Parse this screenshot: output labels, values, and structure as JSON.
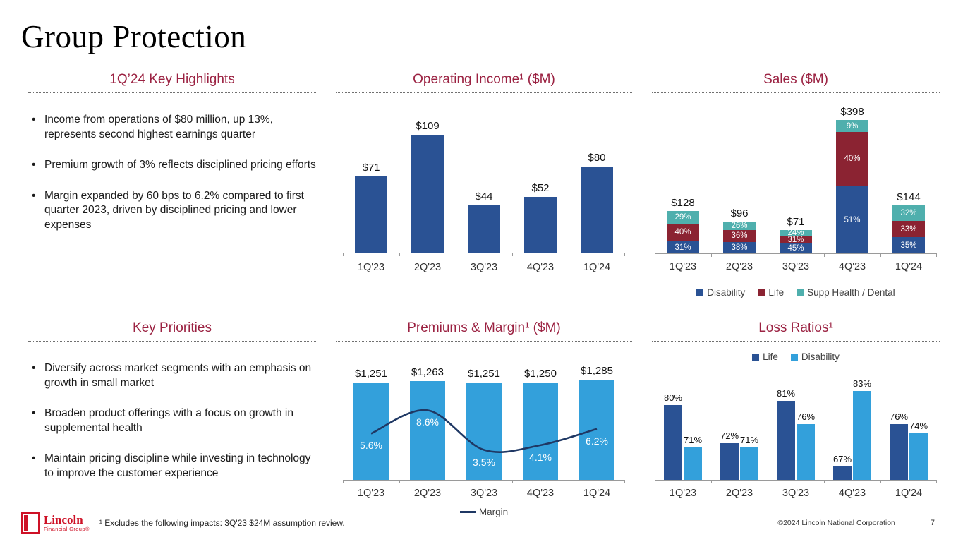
{
  "page": {
    "title": "Group Protection",
    "footnote": "¹ Excludes the following impacts: 3Q'23 $24M assumption review.",
    "copyright": "©2024 Lincoln National Corporation",
    "page_number": "7",
    "logo": {
      "name": "Lincoln",
      "sub": "Financial Group®"
    },
    "colors": {
      "accent": "#9B2242",
      "logo_red": "#CE1126"
    }
  },
  "highlights": {
    "title": "1Q’24 Key Highlights",
    "bullets": [
      "Income from operations of $80 million, up 13%, represents second highest earnings quarter",
      "Premium growth of 3% reflects disciplined pricing efforts",
      "Margin expanded by 60 bps to 6.2% compared to first quarter 2023, driven by disciplined pricing and lower expenses"
    ]
  },
  "priorities": {
    "title": "Key Priorities",
    "bullets": [
      "Diversify across market segments with an emphasis on growth in small market",
      "Broaden product offerings with a focus on growth in supplemental health",
      "Maintain pricing discipline while investing in technology to improve the customer experience"
    ]
  },
  "chart_data": [
    {
      "id": "operating_income",
      "type": "bar",
      "title": "Operating Income¹ ($M)",
      "categories": [
        "1Q'23",
        "2Q'23",
        "3Q'23",
        "4Q'23",
        "1Q'24"
      ],
      "values": [
        71,
        109,
        44,
        52,
        80
      ],
      "labels": [
        "$71",
        "$109",
        "$44",
        "$52",
        "$80"
      ],
      "ylim": [
        0,
        115
      ],
      "bar_color": "#2A5294",
      "grid": false,
      "legend": "none"
    },
    {
      "id": "sales",
      "type": "bar",
      "subtype": "stacked",
      "title": "Sales ($M)",
      "categories": [
        "1Q'23",
        "2Q'23",
        "3Q'23",
        "4Q'23",
        "1Q'24"
      ],
      "totals": [
        128,
        96,
        71,
        398,
        144
      ],
      "total_labels": [
        "$128",
        "$96",
        "$71",
        "$398",
        "$144"
      ],
      "series": [
        {
          "name": "Disability",
          "color": "#2A5294",
          "pct": [
            31,
            38,
            45,
            51,
            35
          ]
        },
        {
          "name": "Life",
          "color": "#8B2332",
          "pct": [
            40,
            36,
            31,
            40,
            33
          ]
        },
        {
          "name": "Supp Health / Dental",
          "color": "#4FAFAD",
          "pct": [
            29,
            26,
            24,
            9,
            32
          ]
        }
      ],
      "ylim": [
        0,
        420
      ],
      "grid": false,
      "legend": "bottom"
    },
    {
      "id": "premiums_margin",
      "type": "bar",
      "subtype": "bar-with-line",
      "title": "Premiums & Margin¹ ($M)",
      "categories": [
        "1Q'23",
        "2Q'23",
        "3Q'23",
        "4Q'23",
        "1Q'24"
      ],
      "bar_values": [
        1251,
        1263,
        1251,
        1250,
        1285
      ],
      "bar_labels": [
        "$1,251",
        "$1,263",
        "$1,251",
        "$1,250",
        "$1,285"
      ],
      "bar_color": "#33A0DB",
      "line": {
        "name": "Margin",
        "values": [
          5.6,
          8.6,
          3.5,
          4.1,
          6.2
        ],
        "labels": [
          "5.6%",
          "8.6%",
          "3.5%",
          "4.1%",
          "6.2%"
        ],
        "color": "#1F3864"
      },
      "grid": false,
      "legend": "bottom"
    },
    {
      "id": "loss_ratios",
      "type": "bar",
      "subtype": "grouped",
      "title": "Loss Ratios¹",
      "categories": [
        "1Q'23",
        "2Q'23",
        "3Q'23",
        "4Q'23",
        "1Q'24"
      ],
      "series": [
        {
          "name": "Life",
          "color": "#2A5294",
          "values": [
            80,
            72,
            81,
            67,
            76
          ],
          "labels": [
            "80%",
            "72%",
            "81%",
            "67%",
            "76%"
          ]
        },
        {
          "name": "Disability",
          "color": "#33A0DB",
          "values": [
            71,
            71,
            76,
            83,
            74
          ],
          "labels": [
            "71%",
            "71%",
            "76%",
            "83%",
            "74%"
          ]
        }
      ],
      "baseline": 64,
      "ymax": 85,
      "grid": false,
      "legend": "top"
    }
  ]
}
